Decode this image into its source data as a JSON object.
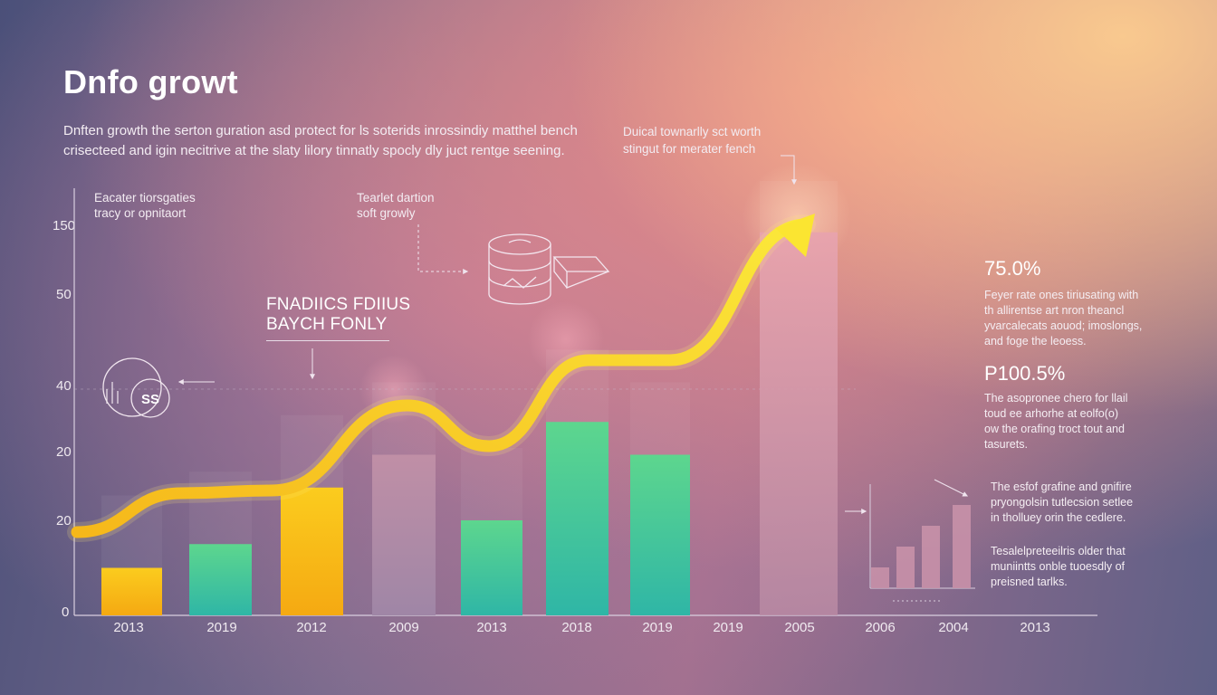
{
  "title": "Dnfo growt",
  "intro": {
    "line1": "Dnften growth the serton guration asd protect for ls soterids inrossindiy matthel bench",
    "line2": "crisecteed and igin necitrive at the slaty lilory tinnatly spocly dly juct rentge seening."
  },
  "callouts": {
    "top_right_line1": "Duical townarlly sct worth",
    "top_right_line2": "stingut for merater fench",
    "left_line1": "Eacater tiorsgaties",
    "left_line2": "tracy or opnitaort",
    "mid_line1": "Tearlet dartion",
    "mid_line2": "soft growly",
    "banner_line1": "FNADIICS FDIIUS",
    "banner_line2": "BAYCH FONLY",
    "badge": "SS"
  },
  "stats": [
    {
      "value": "75.0%",
      "lines": [
        "Feyer rate ones tiriusating with",
        "th allirentse art nron theancl",
        "yvarcalecats aouod; imoslongs,",
        "and foge the leoess."
      ]
    },
    {
      "value": "P100.5%",
      "lines": [
        "The asopronee chero for llail",
        "toud ee arhorhe at eolfo(o)",
        "ow the orafing troct tout and",
        "tasurets."
      ]
    }
  ],
  "notes": [
    {
      "lines": [
        "The esfof grafine and gnifire",
        "pryongolsin tutlecsion setlee",
        "in tholluey orin the cedlere."
      ]
    },
    {
      "lines": [
        "Tesalelpreteeilris older that",
        "muniintts onble tuoesdly of",
        "preisned tarlks."
      ]
    }
  ],
  "colors": {
    "yellow": "#f9c318",
    "green": "#4fcf93",
    "mauve": "#b18aa8",
    "pink": "#d8a0b3",
    "line": "#f7dc2b"
  },
  "chart_data": {
    "type": "bar",
    "title": "Dnfo growt",
    "y_tick_labels": [
      "0",
      "20",
      "20",
      "40",
      "50",
      "150"
    ],
    "categories": [
      "2013",
      "2019",
      "2012",
      "2009",
      "2013",
      "2018",
      "2019",
      "2019",
      "2005",
      "2006",
      "2004",
      "2013"
    ],
    "bars": [
      {
        "category": "2013",
        "value": 10,
        "color": "yellow"
      },
      {
        "category": "2019",
        "value": 15,
        "color": "green"
      },
      {
        "category": "2012",
        "value": 25,
        "color": "yellow"
      },
      {
        "category": "2009",
        "value": 30,
        "color": "mauve"
      },
      {
        "category": "2013",
        "value": 20,
        "color": "green"
      },
      {
        "category": "2018",
        "value": 35,
        "color": "green"
      },
      {
        "category": "2019",
        "value": 30,
        "color": "green"
      },
      {
        "category": "2005",
        "value": 140,
        "color": "pink"
      }
    ],
    "trend": {
      "name": "",
      "values": [
        10,
        15,
        18,
        40,
        27,
        45,
        47,
        145
      ]
    },
    "inset": {
      "type": "bar",
      "values": [
        2,
        4,
        6,
        8
      ]
    },
    "legend": "none",
    "grid": false
  }
}
